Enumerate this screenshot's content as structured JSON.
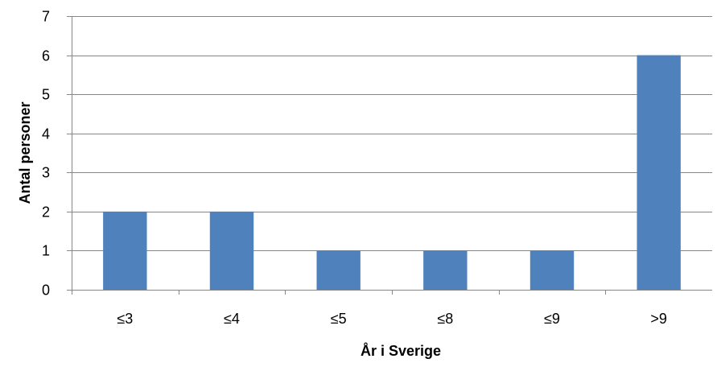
{
  "chart_data": {
    "type": "bar",
    "title": "",
    "xlabel": "År i Sverige",
    "ylabel": "Antal personer",
    "categories": [
      "≤3",
      "≤4",
      "≤5",
      "≤8",
      "≤9",
      ">9"
    ],
    "values": [
      2,
      2,
      1,
      1,
      1,
      6
    ],
    "ylim": [
      0,
      7
    ],
    "yticks": [
      0,
      1,
      2,
      3,
      4,
      5,
      6,
      7
    ],
    "grid": true,
    "legend": "none",
    "bar_color": "#4F81BD",
    "grid_color": "#868686",
    "axis_color": "#868686"
  }
}
